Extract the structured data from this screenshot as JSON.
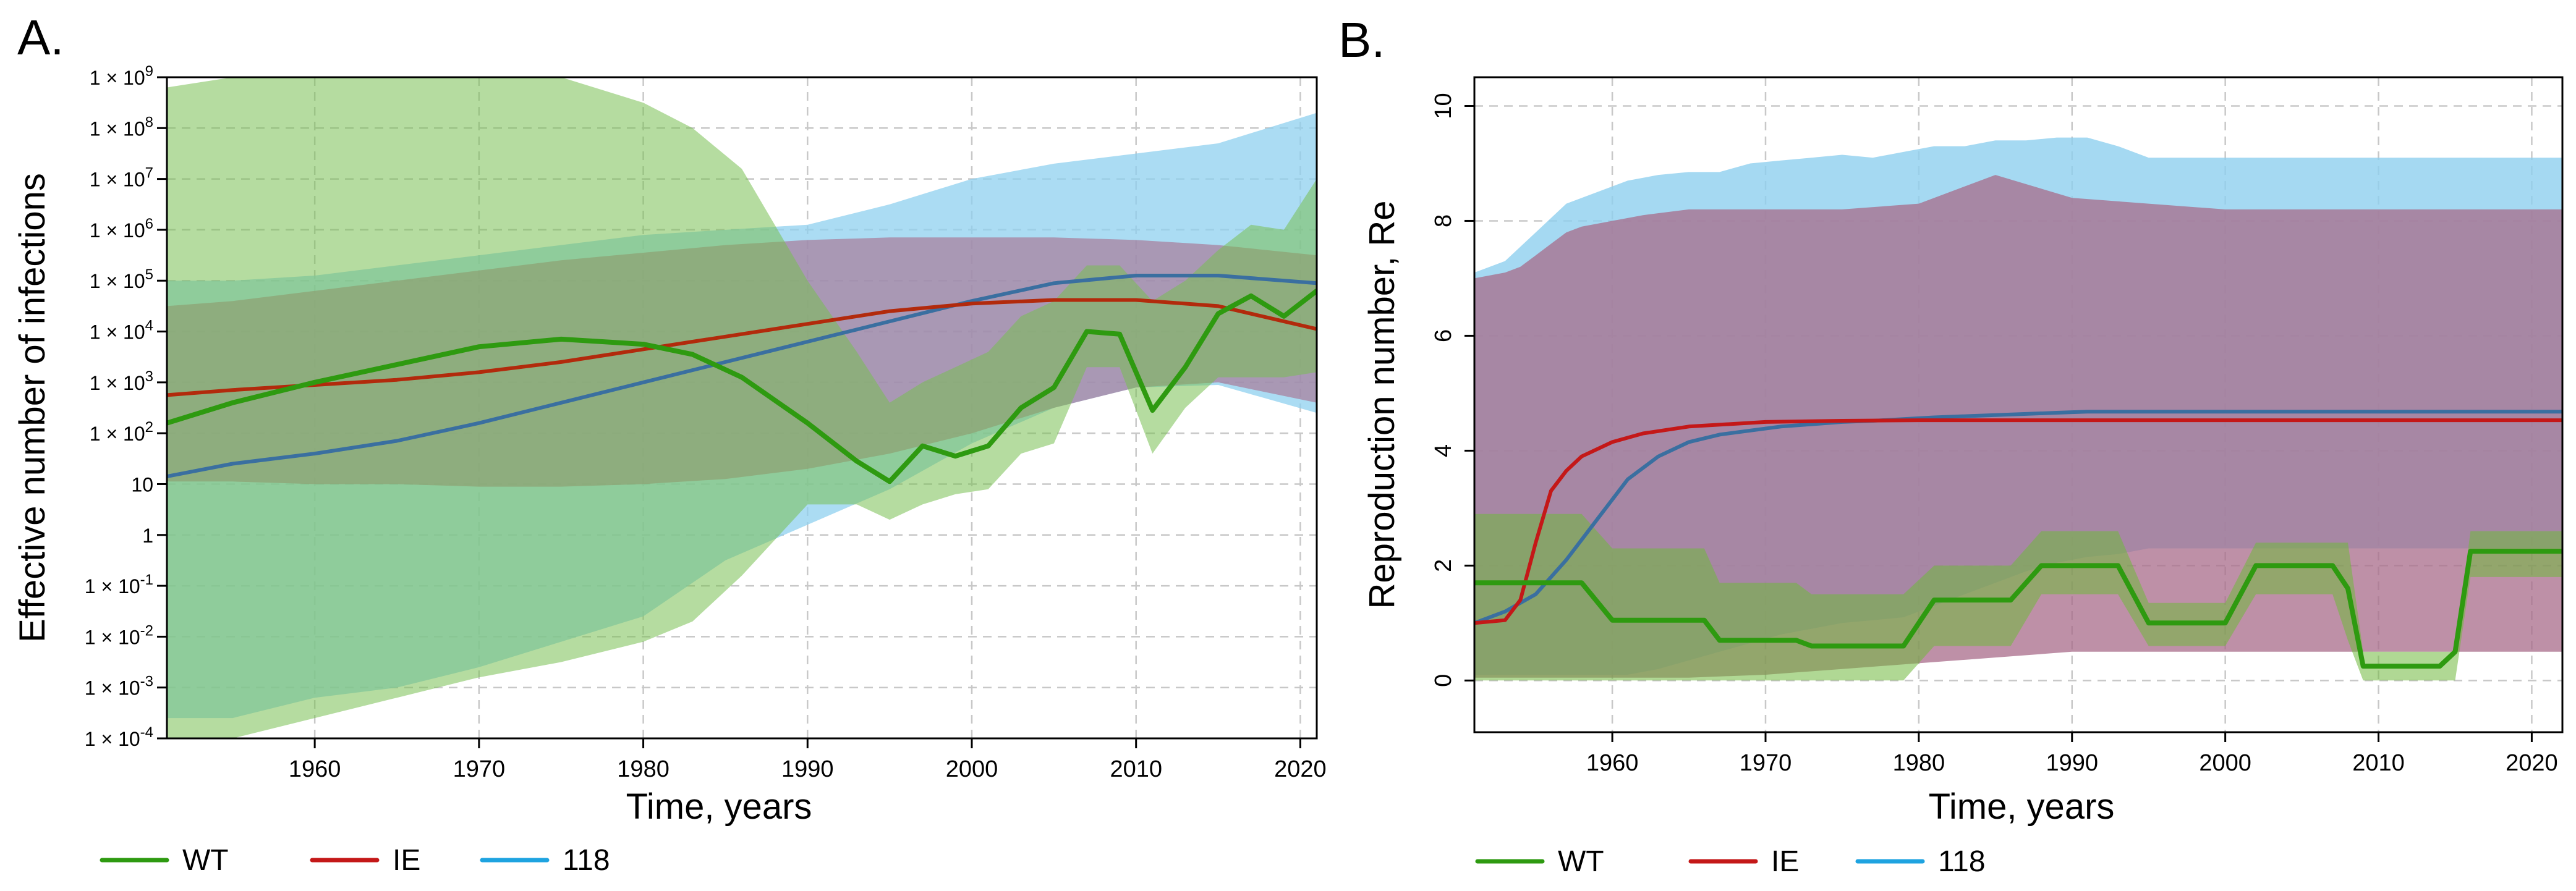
{
  "chart_data": [
    {
      "type": "area",
      "panel_label": "A.",
      "xlabel": "Time, years",
      "ylabel": "Effective number of infections",
      "yscale": "log10",
      "xlim": [
        1951,
        2021
      ],
      "ylim_log10": [
        -4,
        9
      ],
      "x_ticks": [
        {
          "value": 1960,
          "label": "1960"
        },
        {
          "value": 1970,
          "label": "1970"
        },
        {
          "value": 1980,
          "label": "1980"
        },
        {
          "value": 1990,
          "label": "1990"
        },
        {
          "value": 2000,
          "label": "2000"
        },
        {
          "value": 2010,
          "label": "2010"
        },
        {
          "value": 2020,
          "label": "2020"
        }
      ],
      "y_ticks": [
        {
          "value": -4,
          "base": "1 × 10",
          "exp": "-4"
        },
        {
          "value": -3,
          "base": "1 × 10",
          "exp": "-3"
        },
        {
          "value": -2,
          "base": "1 × 10",
          "exp": "-2"
        },
        {
          "value": -1,
          "base": "1 × 10",
          "exp": "-1"
        },
        {
          "value": 0,
          "base": "1",
          "exp": ""
        },
        {
          "value": 1,
          "base": "10",
          "exp": ""
        },
        {
          "value": 2,
          "base": "1 × 10",
          "exp": "2"
        },
        {
          "value": 3,
          "base": "1 × 10",
          "exp": "3"
        },
        {
          "value": 4,
          "base": "1 × 10",
          "exp": "4"
        },
        {
          "value": 5,
          "base": "1 × 10",
          "exp": "5"
        },
        {
          "value": 6,
          "base": "1 × 10",
          "exp": "6"
        },
        {
          "value": 7,
          "base": "1 × 10",
          "exp": "7"
        },
        {
          "value": 8,
          "base": "1 × 10",
          "exp": "8"
        },
        {
          "value": 9,
          "base": "1 × 10",
          "exp": "9"
        }
      ],
      "grid": true,
      "series": [
        {
          "name": "118",
          "line_color": "#3a6fa0",
          "fill_color": "#8fd0ef",
          "fill_opacity": 0.75,
          "x": [
            1951,
            1955,
            1960,
            1965,
            1970,
            1975,
            1980,
            1985,
            1990,
            1995,
            2000,
            2005,
            2010,
            2015,
            2021
          ],
          "median": [
            1.15,
            1.4,
            1.6,
            1.85,
            2.2,
            2.6,
            3.0,
            3.4,
            3.8,
            4.2,
            4.6,
            4.95,
            5.1,
            5.1,
            4.95
          ],
          "lower": [
            -3.6,
            -3.6,
            -3.2,
            -3.0,
            -2.6,
            -2.1,
            -1.6,
            -0.5,
            0.2,
            0.9,
            1.8,
            2.5,
            2.9,
            2.95,
            2.4
          ],
          "upper": [
            5.0,
            5.0,
            5.1,
            5.3,
            5.5,
            5.7,
            5.9,
            6.0,
            6.1,
            6.5,
            7.0,
            7.3,
            7.5,
            7.7,
            8.3
          ]
        },
        {
          "name": "IE",
          "line_color": "#b22a0c",
          "fill_color": "#a86b8a",
          "fill_opacity": 0.6,
          "x": [
            1951,
            1955,
            1960,
            1965,
            1970,
            1975,
            1980,
            1985,
            1990,
            1995,
            2000,
            2005,
            2010,
            2015,
            2021
          ],
          "median": [
            2.75,
            2.85,
            2.95,
            3.05,
            3.2,
            3.4,
            3.65,
            3.9,
            4.15,
            4.4,
            4.55,
            4.62,
            4.62,
            4.5,
            4.05
          ],
          "lower": [
            1.05,
            1.05,
            1.0,
            1.0,
            0.95,
            0.95,
            1.0,
            1.1,
            1.3,
            1.6,
            2.0,
            2.5,
            2.9,
            3.0,
            2.6
          ],
          "upper": [
            4.5,
            4.6,
            4.8,
            5.0,
            5.2,
            5.4,
            5.55,
            5.7,
            5.8,
            5.85,
            5.85,
            5.85,
            5.8,
            5.7,
            5.5
          ]
        },
        {
          "name": "WT",
          "line_color": "#2e9a10",
          "fill_color": "#79c052",
          "fill_opacity": 0.55,
          "x": [
            1951,
            1955,
            1960,
            1965,
            1970,
            1975,
            1980,
            1983,
            1986,
            1990,
            1993,
            1995,
            1997,
            1999,
            2001,
            2003,
            2005,
            2007,
            2009,
            2011,
            2013,
            2015,
            2017,
            2019,
            2021
          ],
          "median": [
            2.2,
            2.6,
            3.0,
            3.35,
            3.7,
            3.85,
            3.75,
            3.55,
            3.1,
            2.2,
            1.45,
            1.05,
            1.75,
            1.55,
            1.75,
            2.5,
            2.9,
            4.0,
            3.95,
            2.45,
            3.3,
            4.35,
            4.7,
            4.3,
            4.8
          ],
          "lower": [
            -4.0,
            -4.0,
            -3.6,
            -3.2,
            -2.8,
            -2.5,
            -2.1,
            -1.7,
            -0.8,
            0.6,
            0.6,
            0.3,
            0.6,
            0.8,
            0.9,
            1.6,
            1.8,
            3.3,
            3.3,
            1.6,
            2.5,
            3.1,
            3.1,
            3.1,
            3.2
          ],
          "upper": [
            8.8,
            9.0,
            9.0,
            9.0,
            9.0,
            9.0,
            8.5,
            8.0,
            7.2,
            5.0,
            3.6,
            2.6,
            3.0,
            3.3,
            3.6,
            4.3,
            4.6,
            5.3,
            5.3,
            4.6,
            5.0,
            5.6,
            6.1,
            6.0,
            7.0
          ]
        }
      ]
    },
    {
      "type": "area",
      "panel_label": "B.",
      "xlabel": "Time, years",
      "ylabel": "Reproduction number, Re",
      "yscale": "linear",
      "xlim": [
        1951,
        2022
      ],
      "ylim": [
        -0.9,
        10.5
      ],
      "x_ticks": [
        {
          "value": 1960,
          "label": "1960"
        },
        {
          "value": 1970,
          "label": "1970"
        },
        {
          "value": 1980,
          "label": "1980"
        },
        {
          "value": 1990,
          "label": "1990"
        },
        {
          "value": 2000,
          "label": "2000"
        },
        {
          "value": 2010,
          "label": "2010"
        },
        {
          "value": 2020,
          "label": "2020"
        }
      ],
      "y_ticks": [
        {
          "value": 0,
          "label": "0"
        },
        {
          "value": 2,
          "label": "2"
        },
        {
          "value": 4,
          "label": "4"
        },
        {
          "value": 6,
          "label": "6"
        },
        {
          "value": 8,
          "label": "8"
        },
        {
          "value": 10,
          "label": "10"
        }
      ],
      "grid": true,
      "series": [
        {
          "name": "118",
          "line_color": "#3a6fa0",
          "fill_color": "#8fd0ef",
          "fill_opacity": 0.8,
          "x": [
            1951,
            1953,
            1955,
            1957,
            1959,
            1961,
            1963,
            1965,
            1967,
            1969,
            1971,
            1973,
            1975,
            1977,
            1979,
            1981,
            1983,
            1985,
            1987,
            1989,
            1991,
            1993,
            1995,
            2000,
            2005,
            2010,
            2015,
            2022
          ],
          "median": [
            1.0,
            1.2,
            1.5,
            2.1,
            2.8,
            3.5,
            3.9,
            4.15,
            4.28,
            4.35,
            4.42,
            4.46,
            4.5,
            4.52,
            4.55,
            4.58,
            4.6,
            4.62,
            4.64,
            4.66,
            4.68,
            4.68,
            4.68,
            4.68,
            4.68,
            4.68,
            4.68,
            4.68
          ],
          "lower": [
            0.1,
            0.1,
            0.1,
            0.1,
            0.1,
            0.1,
            0.2,
            0.35,
            0.5,
            0.65,
            0.8,
            0.9,
            1.0,
            1.05,
            1.1,
            1.3,
            1.5,
            1.7,
            1.9,
            2.05,
            2.15,
            2.2,
            2.3,
            2.3,
            2.3,
            2.3,
            2.3,
            2.3
          ],
          "upper": [
            7.1,
            7.3,
            7.8,
            8.3,
            8.5,
            8.7,
            8.8,
            8.85,
            8.85,
            9.0,
            9.05,
            9.1,
            9.15,
            9.1,
            9.2,
            9.3,
            9.3,
            9.4,
            9.4,
            9.45,
            9.45,
            9.3,
            9.1,
            9.1,
            9.1,
            9.1,
            9.1,
            9.1
          ]
        },
        {
          "name": "IE",
          "line_color": "#c41818",
          "fill_color": "#a86b8a",
          "fill_opacity": 0.75,
          "x": [
            1951,
            1953,
            1954,
            1955,
            1956,
            1957,
            1958,
            1960,
            1962,
            1965,
            1970,
            1975,
            1980,
            1985,
            1990,
            2000,
            2010,
            2022
          ],
          "median": [
            1.0,
            1.05,
            1.4,
            2.4,
            3.3,
            3.65,
            3.9,
            4.15,
            4.3,
            4.42,
            4.5,
            4.52,
            4.53,
            4.53,
            4.53,
            4.53,
            4.53,
            4.53
          ],
          "lower": [
            0.05,
            0.05,
            0.05,
            0.05,
            0.05,
            0.05,
            0.05,
            0.05,
            0.05,
            0.05,
            0.1,
            0.2,
            0.3,
            0.4,
            0.5,
            0.5,
            0.5,
            0.5
          ],
          "upper": [
            7.0,
            7.1,
            7.2,
            7.4,
            7.6,
            7.8,
            7.9,
            8.0,
            8.1,
            8.2,
            8.2,
            8.2,
            8.3,
            8.8,
            8.4,
            8.2,
            8.2,
            8.2
          ]
        },
        {
          "name": "WT",
          "line_color": "#2e9a10",
          "fill_color": "#6fb83c",
          "fill_opacity": 0.55,
          "x": [
            1951,
            1958,
            1960,
            1966,
            1967,
            1972,
            1973,
            1979,
            1981,
            1986,
            1988,
            1993,
            1995,
            2000,
            2002,
            2007,
            2008,
            2009,
            2014,
            2015,
            2016,
            2022
          ],
          "median": [
            1.7,
            1.7,
            1.05,
            1.05,
            0.7,
            0.7,
            0.6,
            0.6,
            1.4,
            1.4,
            2.0,
            2.0,
            1.0,
            1.0,
            2.0,
            2.0,
            1.6,
            0.25,
            0.25,
            0.5,
            2.25,
            2.25
          ],
          "lower": [
            0.0,
            0.0,
            0.0,
            0.0,
            0.0,
            0.0,
            0.0,
            0.0,
            0.6,
            0.6,
            1.5,
            1.5,
            0.6,
            0.6,
            1.5,
            1.5,
            0.7,
            0.0,
            0.0,
            0.0,
            1.8,
            1.8
          ],
          "upper": [
            2.9,
            2.9,
            2.3,
            2.3,
            1.7,
            1.7,
            1.5,
            1.5,
            2.0,
            2.0,
            2.6,
            2.6,
            1.35,
            1.35,
            2.4,
            2.4,
            2.4,
            0.5,
            0.5,
            0.5,
            2.6,
            2.6
          ]
        }
      ]
    }
  ],
  "legend": [
    {
      "name": "WT",
      "color": "#2e9a10"
    },
    {
      "name": "IE",
      "color": "#c41818"
    },
    {
      "name": "118",
      "color": "#1ea3e0"
    }
  ]
}
